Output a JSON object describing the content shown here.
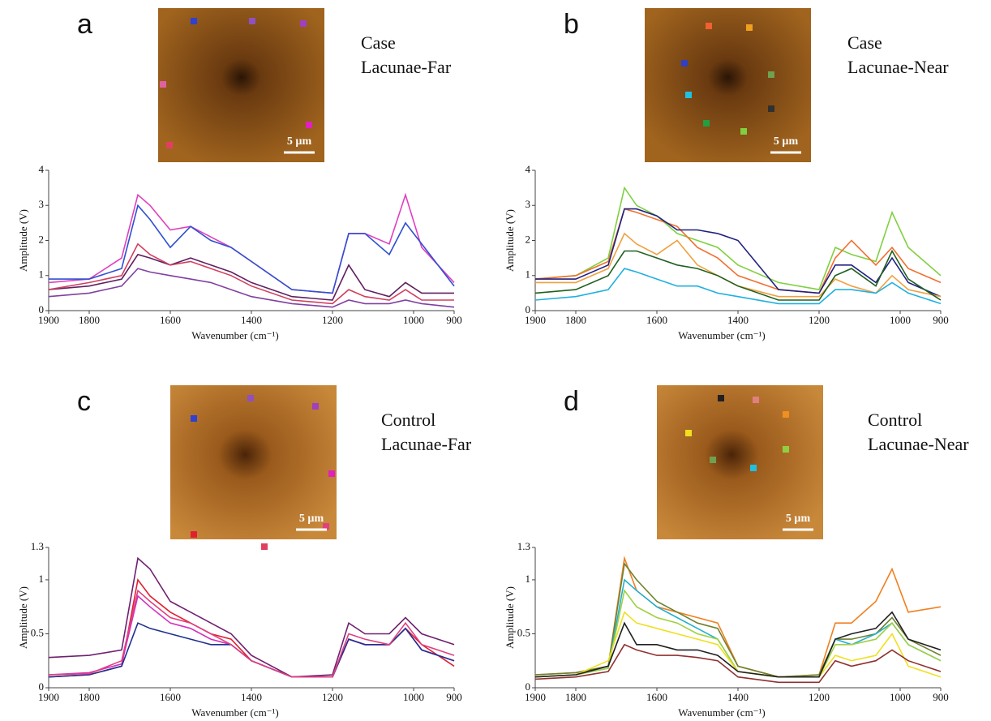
{
  "chart_data": [
    {
      "type": "line",
      "panel": "a",
      "caption": [
        "Case",
        "Lacunae-Far"
      ],
      "scale_label": "5 µm",
      "xlabel": "Wavenumber (cm⁻¹)",
      "ylabel": "Amplitude (V)",
      "x": [
        1900,
        1800,
        1720,
        1680,
        1650,
        1600,
        1550,
        1500,
        1450,
        1400,
        1300,
        1200,
        1160,
        1120,
        1060,
        1020,
        980,
        900
      ],
      "xlim": [
        1900,
        900
      ],
      "xticks": [
        1900,
        1800,
        1600,
        1400,
        1200,
        1000,
        900
      ],
      "ylim": [
        0,
        4
      ],
      "yticks": [
        0,
        1,
        2,
        3,
        4
      ],
      "series": [
        {
          "color": "#e040c0",
          "values": [
            0.8,
            0.9,
            1.5,
            3.3,
            3.0,
            2.3,
            2.4,
            2.1,
            1.8,
            1.4,
            0.6,
            0.5,
            2.2,
            2.2,
            1.9,
            3.3,
            1.8,
            0.8
          ]
        },
        {
          "color": "#3050d0",
          "values": [
            0.9,
            0.9,
            1.2,
            3.0,
            2.6,
            1.8,
            2.4,
            2.0,
            1.8,
            1.4,
            0.6,
            0.5,
            2.2,
            2.2,
            1.6,
            2.5,
            1.9,
            0.7
          ]
        },
        {
          "color": "#602060",
          "values": [
            0.6,
            0.7,
            0.9,
            1.6,
            1.5,
            1.3,
            1.5,
            1.3,
            1.1,
            0.8,
            0.4,
            0.3,
            1.3,
            0.6,
            0.4,
            0.8,
            0.5,
            0.5
          ]
        },
        {
          "color": "#d04060",
          "values": [
            0.6,
            0.8,
            1.0,
            1.9,
            1.6,
            1.3,
            1.4,
            1.2,
            1.0,
            0.7,
            0.3,
            0.2,
            0.6,
            0.4,
            0.3,
            0.6,
            0.3,
            0.3
          ]
        },
        {
          "color": "#8040a0",
          "values": [
            0.4,
            0.5,
            0.7,
            1.2,
            1.1,
            1.0,
            0.9,
            0.8,
            0.6,
            0.4,
            0.2,
            0.1,
            0.3,
            0.2,
            0.2,
            0.3,
            0.2,
            0.1
          ]
        }
      ]
    },
    {
      "type": "line",
      "panel": "b",
      "caption": [
        "Case",
        "Lacunae-Near"
      ],
      "scale_label": "5 µm",
      "xlabel": "Wavenumber (cm⁻¹)",
      "ylabel": "Amplitude (V)",
      "x": [
        1900,
        1800,
        1720,
        1680,
        1650,
        1600,
        1550,
        1500,
        1450,
        1400,
        1300,
        1200,
        1160,
        1120,
        1060,
        1020,
        980,
        900
      ],
      "xlim": [
        1900,
        900
      ],
      "xticks": [
        1900,
        1800,
        1600,
        1400,
        1200,
        1000,
        900
      ],
      "ylim": [
        0,
        4
      ],
      "yticks": [
        0,
        1,
        2,
        3,
        4
      ],
      "series": [
        {
          "color": "#80d040",
          "values": [
            0.9,
            1.0,
            1.5,
            3.5,
            3.0,
            2.7,
            2.2,
            2.0,
            1.8,
            1.3,
            0.8,
            0.6,
            1.8,
            1.6,
            1.4,
            2.8,
            1.8,
            1.0
          ]
        },
        {
          "color": "#f07030",
          "values": [
            0.9,
            1.0,
            1.4,
            2.9,
            2.8,
            2.6,
            2.4,
            1.8,
            1.5,
            1.0,
            0.6,
            0.5,
            1.5,
            2.0,
            1.3,
            1.8,
            1.2,
            0.8
          ]
        },
        {
          "color": "#202080",
          "values": [
            0.9,
            0.9,
            1.3,
            2.9,
            2.9,
            2.7,
            2.3,
            2.3,
            2.2,
            2.0,
            0.6,
            0.5,
            1.3,
            1.3,
            0.8,
            1.5,
            0.8,
            0.4
          ]
        },
        {
          "color": "#f0a040",
          "values": [
            0.8,
            0.8,
            1.2,
            2.2,
            1.9,
            1.6,
            2.0,
            1.3,
            1.0,
            0.7,
            0.4,
            0.4,
            0.9,
            0.7,
            0.5,
            1.0,
            0.6,
            0.4
          ]
        },
        {
          "color": "#206020",
          "values": [
            0.5,
            0.6,
            1.0,
            1.7,
            1.7,
            1.5,
            1.3,
            1.2,
            1.0,
            0.7,
            0.3,
            0.3,
            1.0,
            1.2,
            0.7,
            1.7,
            0.9,
            0.3
          ]
        },
        {
          "color": "#20b0e0",
          "values": [
            0.3,
            0.4,
            0.6,
            1.2,
            1.1,
            0.9,
            0.7,
            0.7,
            0.5,
            0.4,
            0.2,
            0.2,
            0.6,
            0.6,
            0.5,
            0.8,
            0.5,
            0.2
          ]
        }
      ]
    },
    {
      "type": "line",
      "panel": "c",
      "caption": [
        "Control",
        "Lacunae-Far"
      ],
      "scale_label": "5 µm",
      "xlabel": "Wavenumber (cm⁻¹)",
      "ylabel": "Amplitude (V)",
      "x": [
        1900,
        1800,
        1720,
        1680,
        1650,
        1600,
        1550,
        1500,
        1450,
        1400,
        1300,
        1200,
        1160,
        1120,
        1060,
        1020,
        980,
        900
      ],
      "xlim": [
        1900,
        900
      ],
      "xticks": [
        1900,
        1800,
        1600,
        1400,
        1200,
        1000,
        900
      ],
      "ylim": [
        0,
        1.3
      ],
      "yticks": [
        0,
        0.5,
        1,
        1.3
      ],
      "series": [
        {
          "color": "#702070",
          "values": [
            0.28,
            0.3,
            0.35,
            1.2,
            1.1,
            0.8,
            0.7,
            0.6,
            0.5,
            0.3,
            0.1,
            0.12,
            0.6,
            0.5,
            0.5,
            0.65,
            0.5,
            0.4
          ]
        },
        {
          "color": "#e02030",
          "values": [
            0.1,
            0.12,
            0.2,
            1.0,
            0.85,
            0.7,
            0.6,
            0.5,
            0.45,
            0.25,
            0.1,
            0.1,
            0.45,
            0.4,
            0.4,
            0.55,
            0.4,
            0.2
          ]
        },
        {
          "color": "#d030c0",
          "values": [
            0.12,
            0.14,
            0.22,
            0.85,
            0.75,
            0.6,
            0.55,
            0.45,
            0.4,
            0.25,
            0.1,
            0.1,
            0.45,
            0.4,
            0.4,
            0.55,
            0.35,
            0.25
          ]
        },
        {
          "color": "#203090",
          "values": [
            0.1,
            0.12,
            0.2,
            0.6,
            0.55,
            0.5,
            0.45,
            0.4,
            0.4,
            0.25,
            0.1,
            0.1,
            0.45,
            0.4,
            0.4,
            0.55,
            0.35,
            0.25
          ]
        },
        {
          "color": "#e04080",
          "values": [
            0.12,
            0.13,
            0.25,
            0.9,
            0.8,
            0.65,
            0.6,
            0.5,
            0.4,
            0.25,
            0.1,
            0.1,
            0.5,
            0.45,
            0.4,
            0.6,
            0.4,
            0.3
          ]
        }
      ]
    },
    {
      "type": "line",
      "panel": "d",
      "caption": [
        "Control",
        "Lacunae-Near"
      ],
      "scale_label": "5 µm",
      "xlabel": "Wavenumber (cm⁻¹)",
      "ylabel": "Amplitude (V)",
      "x": [
        1900,
        1800,
        1720,
        1680,
        1650,
        1600,
        1550,
        1500,
        1450,
        1400,
        1300,
        1200,
        1160,
        1120,
        1060,
        1020,
        980,
        900
      ],
      "xlim": [
        1900,
        900
      ],
      "xticks": [
        1900,
        1800,
        1600,
        1400,
        1200,
        1000,
        900
      ],
      "ylim": [
        0,
        1.3
      ],
      "yticks": [
        0,
        0.5,
        1,
        1.3
      ],
      "series": [
        {
          "color": "#f08020",
          "values": [
            0.12,
            0.14,
            0.2,
            1.2,
            0.9,
            0.75,
            0.7,
            0.65,
            0.6,
            0.2,
            0.1,
            0.12,
            0.6,
            0.6,
            0.8,
            1.1,
            0.7,
            0.75
          ]
        },
        {
          "color": "#708030",
          "values": [
            0.12,
            0.14,
            0.2,
            1.15,
            1.0,
            0.8,
            0.7,
            0.6,
            0.55,
            0.2,
            0.1,
            0.12,
            0.45,
            0.45,
            0.5,
            0.65,
            0.45,
            0.3
          ]
        },
        {
          "color": "#20b0d0",
          "values": [
            0.1,
            0.12,
            0.18,
            1.0,
            0.9,
            0.75,
            0.65,
            0.55,
            0.45,
            0.15,
            0.1,
            0.1,
            0.45,
            0.4,
            0.5,
            0.6,
            0.4,
            0.25
          ]
        },
        {
          "color": "#a0d040",
          "values": [
            0.1,
            0.12,
            0.18,
            0.9,
            0.75,
            0.65,
            0.6,
            0.5,
            0.45,
            0.15,
            0.1,
            0.1,
            0.4,
            0.4,
            0.45,
            0.6,
            0.4,
            0.25
          ]
        },
        {
          "color": "#f0e020",
          "values": [
            0.1,
            0.12,
            0.25,
            0.7,
            0.6,
            0.55,
            0.5,
            0.45,
            0.4,
            0.15,
            0.1,
            0.1,
            0.3,
            0.25,
            0.3,
            0.5,
            0.2,
            0.1
          ]
        },
        {
          "color": "#202020",
          "values": [
            0.1,
            0.12,
            0.2,
            0.6,
            0.4,
            0.4,
            0.35,
            0.35,
            0.3,
            0.15,
            0.1,
            0.1,
            0.45,
            0.5,
            0.55,
            0.7,
            0.45,
            0.35
          ]
        },
        {
          "color": "#903030",
          "values": [
            0.08,
            0.1,
            0.15,
            0.4,
            0.35,
            0.3,
            0.3,
            0.28,
            0.25,
            0.1,
            0.05,
            0.05,
            0.25,
            0.2,
            0.25,
            0.35,
            0.25,
            0.15
          ]
        }
      ]
    }
  ]
}
